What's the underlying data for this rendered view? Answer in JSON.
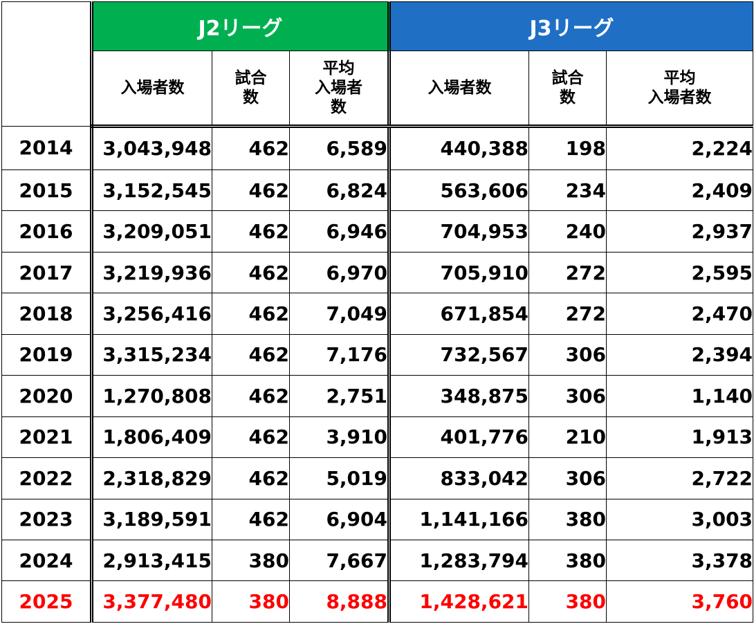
{
  "colors": {
    "j2_header": "#00b050",
    "j3_header": "#1f6fc5",
    "highlight": "#ff0000"
  },
  "leagues": [
    "J2リーグ",
    "J3リーグ"
  ],
  "columns": {
    "j2": [
      "入場者数",
      "試合\n数",
      "平均\n入場者\n数"
    ],
    "j3": [
      "入場者数",
      "試合\n数",
      "平均\n入場者数"
    ]
  },
  "rows": [
    {
      "year": "2014",
      "j2": [
        "3,043,948",
        "462",
        "6,589"
      ],
      "j3": [
        "440,388",
        "198",
        "2,224"
      ]
    },
    {
      "year": "2015",
      "j2": [
        "3,152,545",
        "462",
        "6,824"
      ],
      "j3": [
        "563,606",
        "234",
        "2,409"
      ]
    },
    {
      "year": "2016",
      "j2": [
        "3,209,051",
        "462",
        "6,946"
      ],
      "j3": [
        "704,953",
        "240",
        "2,937"
      ]
    },
    {
      "year": "2017",
      "j2": [
        "3,219,936",
        "462",
        "6,970"
      ],
      "j3": [
        "705,910",
        "272",
        "2,595"
      ]
    },
    {
      "year": "2018",
      "j2": [
        "3,256,416",
        "462",
        "7,049"
      ],
      "j3": [
        "671,854",
        "272",
        "2,470"
      ]
    },
    {
      "year": "2019",
      "j2": [
        "3,315,234",
        "462",
        "7,176"
      ],
      "j3": [
        "732,567",
        "306",
        "2,394"
      ]
    },
    {
      "year": "2020",
      "j2": [
        "1,270,808",
        "462",
        "2,751"
      ],
      "j3": [
        "348,875",
        "306",
        "1,140"
      ]
    },
    {
      "year": "2021",
      "j2": [
        "1,806,409",
        "462",
        "3,910"
      ],
      "j3": [
        "401,776",
        "210",
        "1,913"
      ]
    },
    {
      "year": "2022",
      "j2": [
        "2,318,829",
        "462",
        "5,019"
      ],
      "j3": [
        "833,042",
        "306",
        "2,722"
      ]
    },
    {
      "year": "2023",
      "j2": [
        "3,189,591",
        "462",
        "6,904"
      ],
      "j3": [
        "1,141,166",
        "380",
        "3,003"
      ]
    },
    {
      "year": "2024",
      "j2": [
        "2,913,415",
        "380",
        "7,667"
      ],
      "j3": [
        "1,283,794",
        "380",
        "3,378"
      ]
    },
    {
      "year": "2025",
      "j2": [
        "3,377,480",
        "380",
        "8,888"
      ],
      "j3": [
        "1,428,621",
        "380",
        "3,760"
      ],
      "highlight": true
    }
  ]
}
